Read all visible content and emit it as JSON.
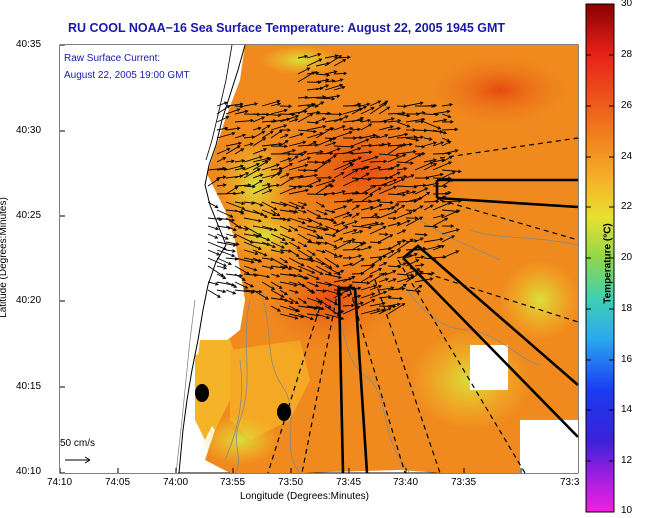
{
  "title": "RU COOL  NOAA−16  Sea Surface Temperature:  August 22, 2005 1945 GMT",
  "current_label_line1": "Raw Surface Current:",
  "current_label_line2": "August 22, 2005 19:00 GMT",
  "scale_label": "50 cm/s",
  "xlabel": "Longitude (Degrees:Minutes)",
  "ylabel": "Latitude (Degrees:Minutes)",
  "colorbar_label": "Temperature (°C)",
  "x_ticks": [
    "74:10",
    "74:05",
    "74:00",
    "73:55",
    "73:50",
    "73:45",
    "73:40",
    "73:35",
    "73:3"
  ],
  "y_ticks": [
    "40:35",
    "40:30",
    "40:25",
    "40:20",
    "40:15",
    "40:10"
  ],
  "colorbar_ticks": [
    "30",
    "28",
    "26",
    "24",
    "22",
    "20",
    "18",
    "16",
    "14",
    "12",
    "10"
  ],
  "colors": {
    "title": "#1a1aaa",
    "land": "#ffffff",
    "sst_warm": "#f08a1e",
    "sst_hot": "#e85a12",
    "sst_cool": "#f5c52a",
    "sst_green": "#b9d93a"
  }
}
